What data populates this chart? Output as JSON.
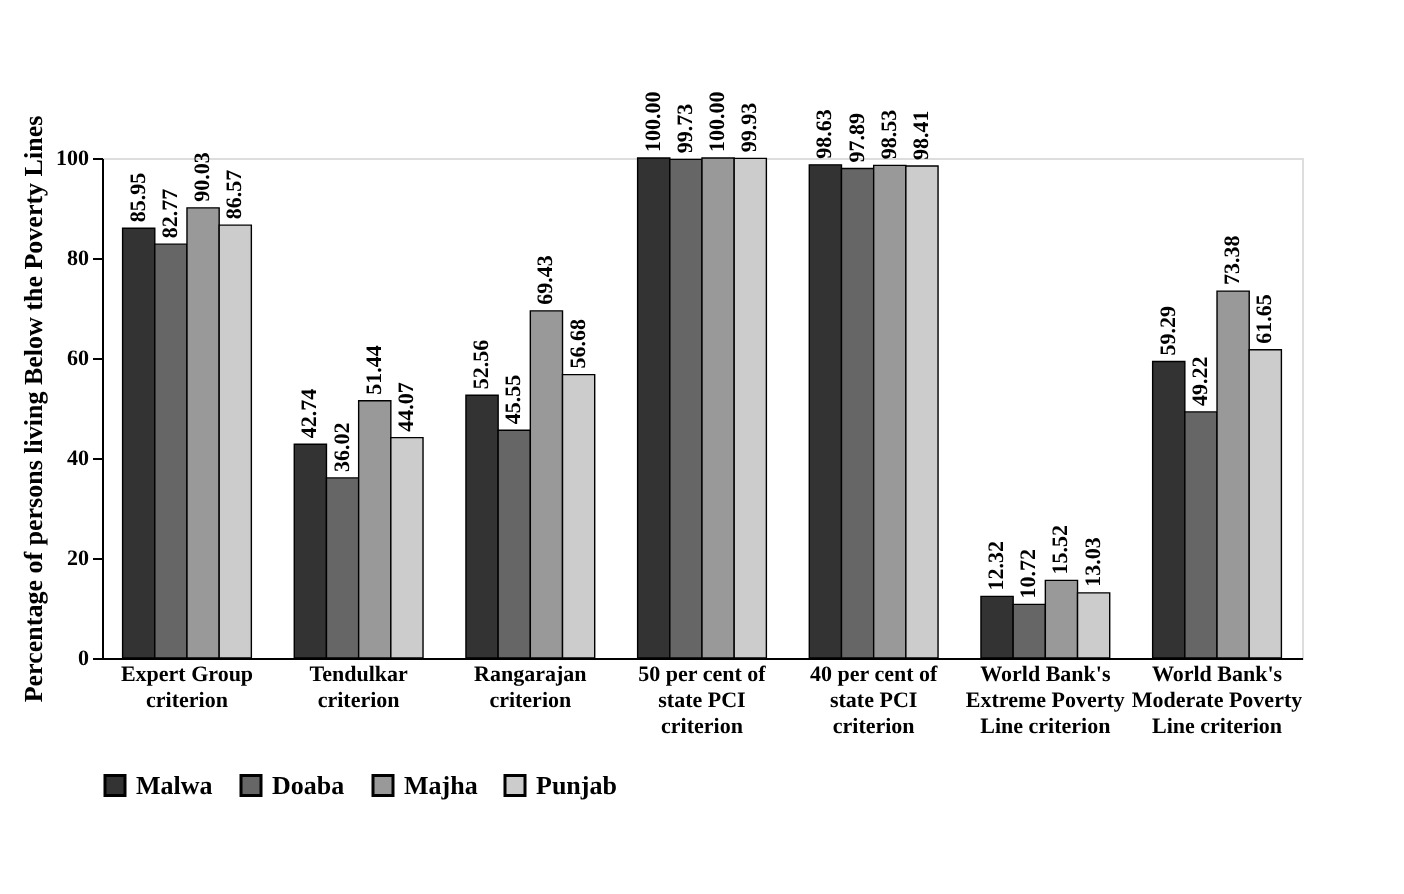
{
  "chart_data": {
    "type": "bar",
    "ylabel": "Percentage of persons living Below the Poverty Lines",
    "categories": [
      "Expert Group criterion",
      "Tendulkar criterion",
      "Rangarajan criterion",
      "50 per cent of state PCI criterion",
      "40 per cent of state PCI criterion",
      "World Bank's Extreme Poverty Line criterion",
      "World Bank's Moderate Poverty Line criterion"
    ],
    "series": [
      {
        "name": "Malwa",
        "color": "#333333",
        "values": [
          85.95,
          42.74,
          52.56,
          100,
          98.63,
          12.32,
          59.29
        ],
        "value_labels": [
          "85.95",
          "42.74",
          "52.56",
          "100.00",
          "98.63",
          "12.32",
          "59.29"
        ]
      },
      {
        "name": "Doaba",
        "color": "#666666",
        "values": [
          82.77,
          36.02,
          45.55,
          99.73,
          97.89,
          10.72,
          49.22
        ],
        "value_labels": [
          "82.77",
          "36.02",
          "45.55",
          "99.73",
          "97.89",
          "10.72",
          "49.22"
        ]
      },
      {
        "name": "Majha",
        "color": "#999999",
        "values": [
          90.03,
          51.44,
          69.43,
          100,
          98.53,
          15.52,
          73.38
        ],
        "value_labels": [
          "90.03",
          "51.44",
          "69.43",
          "100.00",
          "98.53",
          "15.52",
          "73.38"
        ]
      },
      {
        "name": "Punjab",
        "color": "#cccccc",
        "values": [
          86.57,
          44.07,
          56.68,
          99.93,
          98.41,
          13.03,
          61.65
        ],
        "value_labels": [
          "86.57",
          "44.07",
          "56.68",
          "99.93",
          "98.41",
          "13.03",
          "61.65"
        ]
      }
    ],
    "ylim": [
      0,
      100
    ],
    "yticks": [
      0,
      20,
      40,
      60,
      80,
      100
    ],
    "grid": false,
    "legend": "bottom"
  }
}
